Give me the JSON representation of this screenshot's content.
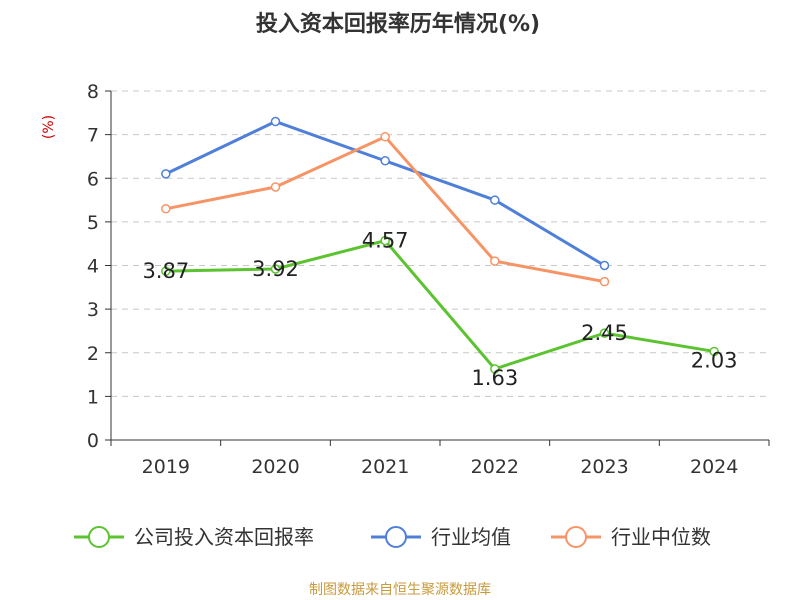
{
  "source_note": "制图数据来自恒生聚源数据库",
  "colors": {
    "company": "#5cc330",
    "industry_avg": "#4f7fd9",
    "industry_median": "#f79466",
    "unit_label": "#cc0000",
    "source_note": "#c89a3c"
  },
  "chart_data": {
    "type": "line",
    "title": "投入资本回报率历年情况(%)",
    "ylabel": "(%)",
    "xlabel": "",
    "categories": [
      "2019",
      "2020",
      "2021",
      "2022",
      "2023",
      "2024"
    ],
    "ylim": [
      0,
      8
    ],
    "yticks": [
      "0",
      "1",
      "2",
      "3",
      "4",
      "5",
      "6",
      "7",
      "8"
    ],
    "grid": true,
    "legend_position": "bottom",
    "series": [
      {
        "name": "公司投入资本回报率",
        "color": "#5cc330",
        "values": [
          3.87,
          3.92,
          4.57,
          1.63,
          2.45,
          2.03
        ],
        "labels": [
          "3.87",
          "3.92",
          "4.57",
          "1.63",
          "2.45",
          "2.03"
        ]
      },
      {
        "name": "行业均值",
        "color": "#4f7fd9",
        "values": [
          6.1,
          7.3,
          6.4,
          5.5,
          4.0,
          null
        ]
      },
      {
        "name": "行业中位数",
        "color": "#f79466",
        "values": [
          5.3,
          5.8,
          6.95,
          4.1,
          3.63,
          null
        ]
      }
    ]
  }
}
